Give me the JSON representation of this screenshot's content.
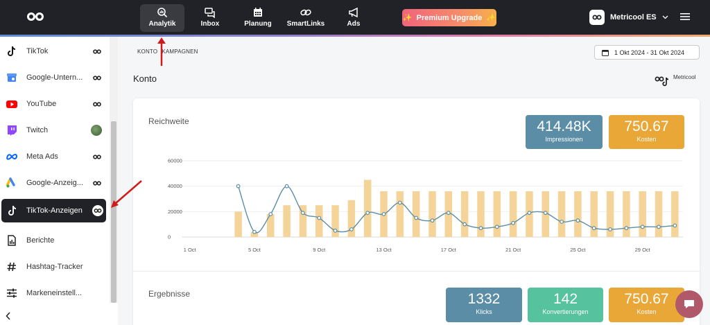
{
  "topbar": {
    "nav": [
      {
        "label": "Analytik",
        "icon": "analytics-icon",
        "active": true
      },
      {
        "label": "Inbox",
        "icon": "inbox-icon"
      },
      {
        "label": "Planung",
        "icon": "calendar-icon"
      },
      {
        "label": "SmartLinks",
        "icon": "link-icon"
      },
      {
        "label": "Ads",
        "icon": "megaphone-icon"
      }
    ],
    "premium_label": "Premium Upgrade",
    "account_name": "Metricool ES"
  },
  "sidebar": {
    "items": [
      {
        "label": "TikTok",
        "icon": "tiktok-icon",
        "status": "linked"
      },
      {
        "label": "Google-Untern...",
        "icon": "google-business-icon",
        "status": "linked"
      },
      {
        "label": "YouTube",
        "icon": "youtube-icon",
        "status": "linked"
      },
      {
        "label": "Twitch",
        "icon": "twitch-icon",
        "status": "avatar"
      },
      {
        "label": "Meta Ads",
        "icon": "meta-icon",
        "status": "linked"
      },
      {
        "label": "Google-Anzeig...",
        "icon": "google-ads-icon",
        "status": "linked"
      },
      {
        "label": "TikTok-Anzeigen",
        "icon": "tiktok-icon",
        "status": "linked",
        "active": true
      }
    ],
    "bottom_items": [
      {
        "label": "Berichte",
        "icon": "report-icon"
      },
      {
        "label": "Hashtag-Tracker",
        "icon": "hashtag-icon"
      },
      {
        "label": "Markeneinstell...",
        "icon": "settings-sliders-icon"
      }
    ]
  },
  "main": {
    "tabs": [
      "KONTO",
      "KAMPAGNEN"
    ],
    "date_range": "1 Okt 2024 - 31 Okt 2024",
    "section_title": "Konto",
    "brand_label": "Metricool",
    "reach_title": "Reichweite",
    "results_title": "Ergebnisse",
    "kpis_top": [
      {
        "value": "414.48K",
        "label": "Impressionen",
        "color": "#5b8da6"
      },
      {
        "value": "750.67",
        "label": "Kosten",
        "color": "#e8a736"
      }
    ],
    "kpis_bottom": [
      {
        "value": "1332",
        "label": "Klicks",
        "color": "#5b8da6"
      },
      {
        "value": "142",
        "label": "Konvertierungen",
        "color": "#56c29e"
      },
      {
        "value": "750.67",
        "label": "Kosten",
        "color": "#e8a736"
      }
    ]
  },
  "chart_data": {
    "type": "bar",
    "title": "Reichweite",
    "x_tick_labels": [
      "1 Oct",
      "5 Oct",
      "9 Oct",
      "13 Oct",
      "17 Oct",
      "21 Oct",
      "25 Oct",
      "29 Oct"
    ],
    "y_tick_labels": [
      "0",
      "20000",
      "40000",
      "60000"
    ],
    "ylim": [
      0,
      60000
    ],
    "categories": [
      "1",
      "2",
      "3",
      "4",
      "5",
      "6",
      "7",
      "8",
      "9",
      "10",
      "11",
      "12",
      "13",
      "14",
      "15",
      "16",
      "17",
      "18",
      "19",
      "20",
      "21",
      "22",
      "23",
      "24",
      "25",
      "26",
      "27",
      "28",
      "29",
      "30",
      "31"
    ],
    "series": [
      {
        "type": "bar",
        "color": "#f5d49a",
        "values": [
          null,
          null,
          null,
          20000,
          4000,
          18000,
          25000,
          25000,
          25000,
          25000,
          29000,
          45000,
          36000,
          36000,
          36000,
          36000,
          36000,
          36000,
          36000,
          36000,
          36000,
          36000,
          36000,
          36000,
          36000,
          36000,
          36000,
          36000,
          36000,
          36000,
          36000
        ]
      },
      {
        "type": "line",
        "color": "#5b8da6",
        "values": [
          null,
          null,
          null,
          40000,
          4000,
          18000,
          40000,
          19000,
          15000,
          5000,
          6000,
          19000,
          18000,
          27000,
          15000,
          13000,
          19000,
          10000,
          7000,
          8000,
          11000,
          19000,
          19000,
          12000,
          13000,
          7000,
          6000,
          7000,
          8000,
          8000,
          9000
        ]
      }
    ],
    "grid": "horizontal"
  }
}
